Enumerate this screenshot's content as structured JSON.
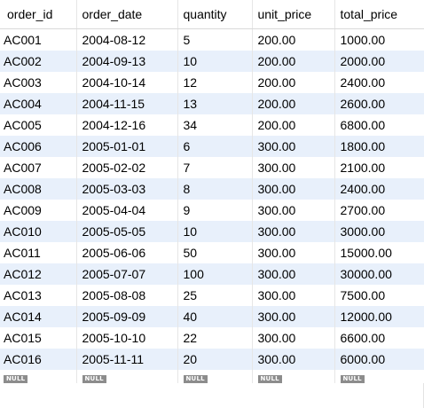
{
  "result_grid": {
    "columns": [
      "order_id",
      "order_date",
      "quantity",
      "unit_price",
      "total_price"
    ],
    "rows": [
      [
        "AC001",
        "2004-08-12",
        "5",
        "200.00",
        "1000.00"
      ],
      [
        "AC002",
        "2004-09-13",
        "10",
        "200.00",
        "2000.00"
      ],
      [
        "AC003",
        "2004-10-14",
        "12",
        "200.00",
        "2400.00"
      ],
      [
        "AC004",
        "2004-11-15",
        "13",
        "200.00",
        "2600.00"
      ],
      [
        "AC005",
        "2004-12-16",
        "34",
        "200.00",
        "6800.00"
      ],
      [
        "AC006",
        "2005-01-01",
        "6",
        "300.00",
        "1800.00"
      ],
      [
        "AC007",
        "2005-02-02",
        "7",
        "300.00",
        "2100.00"
      ],
      [
        "AC008",
        "2005-03-03",
        "8",
        "300.00",
        "2400.00"
      ],
      [
        "AC009",
        "2005-04-04",
        "9",
        "300.00",
        "2700.00"
      ],
      [
        "AC010",
        "2005-05-05",
        "10",
        "300.00",
        "3000.00"
      ],
      [
        "AC011",
        "2005-06-06",
        "50",
        "300.00",
        "15000.00"
      ],
      [
        "AC012",
        "2005-07-07",
        "100",
        "300.00",
        "30000.00"
      ],
      [
        "AC013",
        "2005-08-08",
        "25",
        "300.00",
        "7500.00"
      ],
      [
        "AC014",
        "2005-09-09",
        "40",
        "300.00",
        "12000.00"
      ],
      [
        "AC015",
        "2005-10-10",
        "22",
        "300.00",
        "6600.00"
      ],
      [
        "AC016",
        "2005-11-11",
        "20",
        "300.00",
        "6000.00"
      ]
    ],
    "null_row": [
      "NULL",
      "NULL",
      "NULL",
      "NULL",
      "NULL"
    ]
  }
}
